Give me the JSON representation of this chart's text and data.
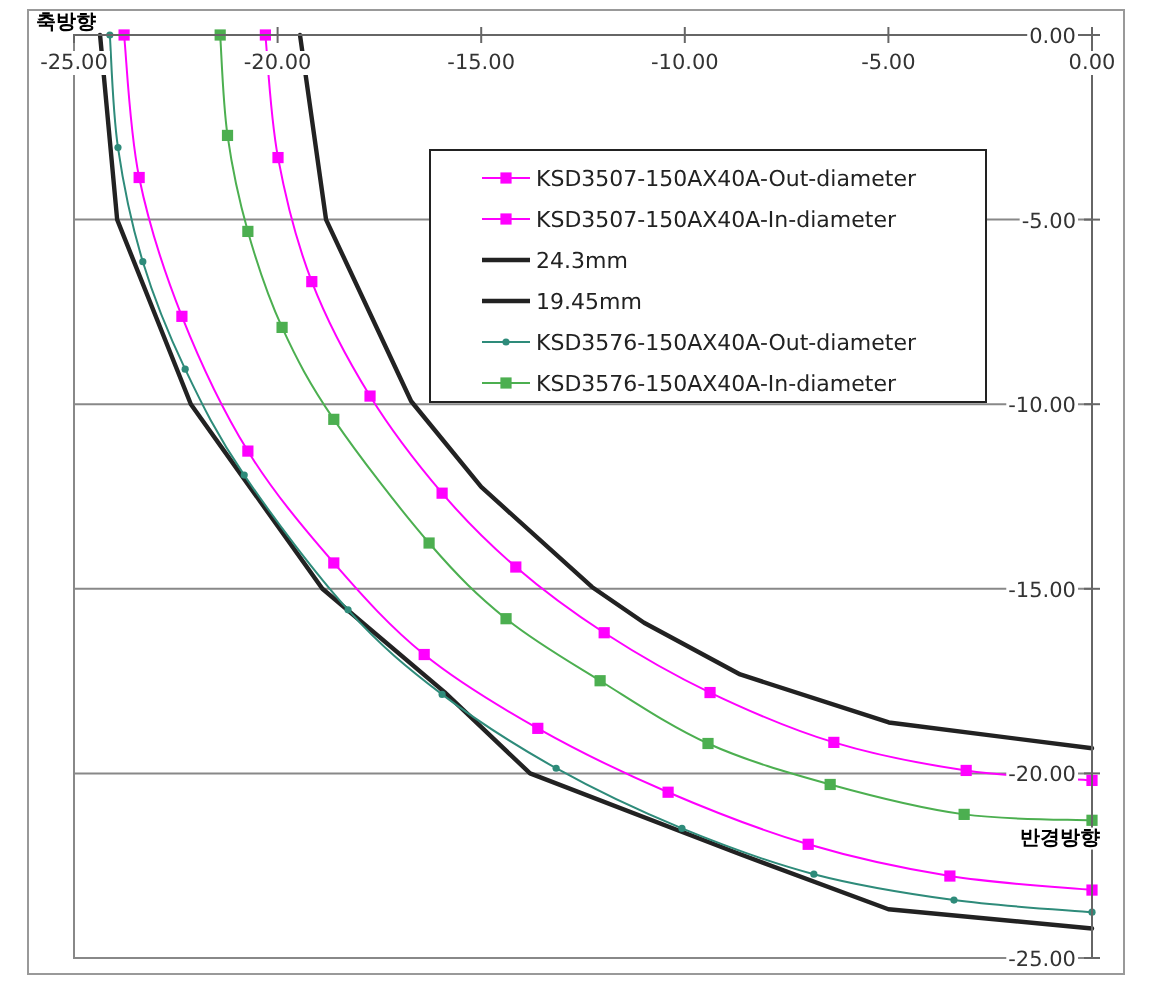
{
  "chart_data": {
    "type": "line",
    "xlabel": "반경방향",
    "ylabel": "축방향",
    "xlim": [
      -25,
      0
    ],
    "ylim": [
      -25,
      0
    ],
    "xticks": [
      {
        "value": -25,
        "label": "-25.00"
      },
      {
        "value": -20,
        "label": "-20.00"
      },
      {
        "value": -15,
        "label": "-15.00"
      },
      {
        "value": -10,
        "label": "-10.00"
      },
      {
        "value": -5,
        "label": "-5.00"
      },
      {
        "value": 0,
        "label": "0.00"
      }
    ],
    "yticks": [
      {
        "value": 0,
        "label": "0.00"
      },
      {
        "value": -5,
        "label": "-5.00"
      },
      {
        "value": -10,
        "label": "-10.00"
      },
      {
        "value": -15,
        "label": "-15.00"
      },
      {
        "value": -20,
        "label": "-20.00"
      },
      {
        "value": -25,
        "label": "-25.00"
      }
    ],
    "grid": "y",
    "legend": "top",
    "series": [
      {
        "name": "KSD3507-150AX40A-Out-diameter",
        "color": "#ff00ff",
        "marker": "square",
        "x": [
          -23.77,
          -23.4,
          -22.35,
          -20.73,
          -18.62,
          -16.4,
          -13.61,
          -10.41,
          -6.97,
          -3.49,
          0
        ],
        "values": [
          0,
          -3.86,
          -7.62,
          -11.27,
          -14.3,
          -16.78,
          -18.78,
          -20.51,
          -21.92,
          -22.78,
          -23.16
        ]
      },
      {
        "name": "KSD3507-150AX40A-In-diameter",
        "color": "#ff00ff",
        "marker": "square",
        "x": [
          -20.3,
          -19.99,
          -19.16,
          -17.73,
          -15.96,
          -14.15,
          -11.98,
          -9.38,
          -6.34,
          -3.09,
          0
        ],
        "values": [
          0,
          -3.32,
          -6.68,
          -9.78,
          -12.41,
          -14.41,
          -16.19,
          -17.81,
          -19.16,
          -19.92,
          -20.19
        ]
      },
      {
        "name": "24.3mm",
        "color": "#222222",
        "marker": "none",
        "x": [
          -24.36,
          -23.94,
          -22.13,
          -18.9,
          -15.9,
          -13.8,
          -8.64,
          -5.0,
          0
        ],
        "values": [
          0,
          -5,
          -10,
          -15,
          -17.8,
          -20,
          -22.19,
          -23.68,
          -24.2
        ]
      },
      {
        "name": "19.45mm",
        "color": "#222222",
        "marker": "none",
        "x": [
          -19.45,
          -18.81,
          -16.72,
          -15.0,
          -12.28,
          -11.0,
          -8.64,
          -4.99,
          0
        ],
        "values": [
          0,
          -5,
          -9.92,
          -12.24,
          -14.95,
          -15.92,
          -17.32,
          -18.62,
          -19.32
        ]
      },
      {
        "name": "KSD3576-150AX40A-Out-diameter",
        "color": "#2e8b7a",
        "marker": "circle",
        "x": [
          -24.12,
          -23.92,
          -23.31,
          -22.27,
          -20.82,
          -18.27,
          -15.96,
          -13.16,
          -10.07,
          -6.83,
          -3.39,
          0
        ],
        "values": [
          0,
          -3.05,
          -6.14,
          -9.05,
          -11.92,
          -15.57,
          -17.86,
          -19.86,
          -21.49,
          -22.73,
          -23.43,
          -23.76
        ]
      },
      {
        "name": "KSD3576-150AX40A-In-diameter",
        "color": "#4caf50",
        "marker": "square",
        "x": [
          -21.41,
          -21.23,
          -20.73,
          -19.89,
          -18.62,
          -16.28,
          -14.39,
          -12.08,
          -9.43,
          -6.43,
          -3.14,
          0
        ],
        "values": [
          0,
          -2.72,
          -5.32,
          -7.92,
          -10.41,
          -13.76,
          -15.81,
          -17.49,
          -19.19,
          -20.3,
          -21.11,
          -21.27
        ]
      }
    ]
  }
}
